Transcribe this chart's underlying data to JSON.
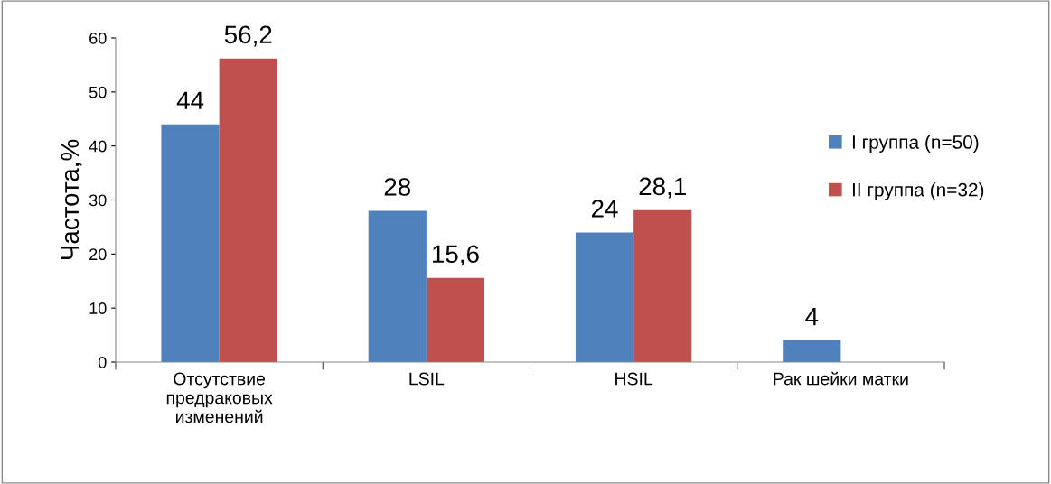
{
  "chart_data": {
    "type": "bar",
    "ylabel": "Частота,%",
    "categories": [
      "Отсутствие\nпредраковых\nизменений",
      "LSIL",
      "HSIL",
      "Рак шейки матки"
    ],
    "series": [
      {
        "name": "I группа (n=50)",
        "color": "#4f81bd",
        "values": [
          44,
          28,
          24,
          4
        ],
        "value_labels": [
          "44",
          "28",
          "24",
          "4"
        ]
      },
      {
        "name": "II группа (n=32)",
        "color": "#c0504d",
        "values": [
          56.2,
          15.6,
          28.1,
          0
        ],
        "value_labels": [
          "56,2",
          "15,6",
          "28,1",
          null
        ]
      }
    ],
    "ylim": [
      0,
      60
    ],
    "yticks": [
      0,
      10,
      20,
      30,
      40,
      50,
      60
    ],
    "grid": false,
    "legend": "right"
  }
}
